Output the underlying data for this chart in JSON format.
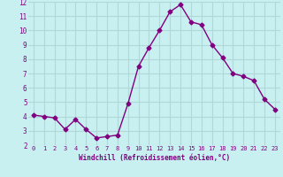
{
  "x": [
    0,
    1,
    2,
    3,
    4,
    5,
    6,
    7,
    8,
    9,
    10,
    11,
    12,
    13,
    14,
    15,
    16,
    17,
    18,
    19,
    20,
    21,
    22,
    23
  ],
  "y": [
    4.1,
    4.0,
    3.9,
    3.1,
    3.8,
    3.1,
    2.5,
    2.6,
    2.7,
    4.9,
    7.5,
    8.8,
    10.0,
    11.3,
    11.8,
    10.6,
    10.4,
    9.0,
    8.1,
    7.0,
    6.8,
    6.5,
    5.2,
    4.5
  ],
  "line_color": "#800080",
  "marker": "D",
  "marker_size": 2.5,
  "bg_color": "#c8f0f0",
  "grid_color": "#b0d8d8",
  "xlabel": "Windchill (Refroidissement éolien,°C)",
  "xlabel_color": "#800080",
  "tick_color": "#800080",
  "ylim": [
    2,
    12
  ],
  "xlim": [
    -0.5,
    23.5
  ],
  "yticks": [
    2,
    3,
    4,
    5,
    6,
    7,
    8,
    9,
    10,
    11,
    12
  ],
  "xticks": [
    0,
    1,
    2,
    3,
    4,
    5,
    6,
    7,
    8,
    9,
    10,
    11,
    12,
    13,
    14,
    15,
    16,
    17,
    18,
    19,
    20,
    21,
    22,
    23
  ]
}
